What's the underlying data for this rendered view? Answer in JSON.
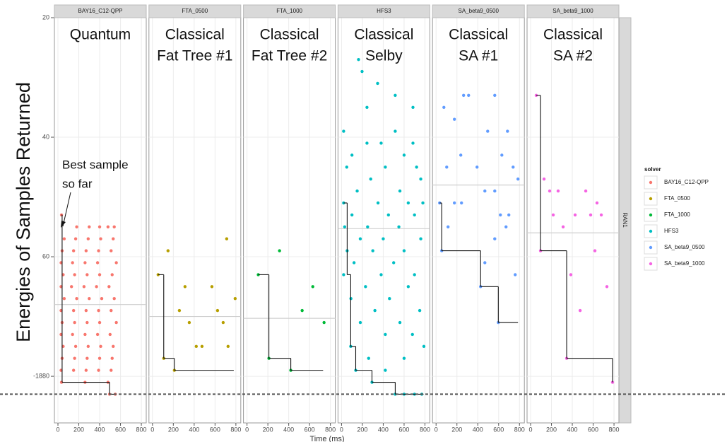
{
  "chart_data": {
    "type": "scatter",
    "y_label": "Energies of Samples Returned",
    "x_label": "Time (ms)",
    "legend_title": "solver",
    "facet_row_label": "RAN1",
    "annotation": [
      "Best sample",
      "so far"
    ],
    "reference_line": -1883,
    "xlim": [
      -34,
      847
    ],
    "xticks": [
      0,
      200,
      400,
      600,
      800
    ],
    "ylim": [
      -1887.8,
      -1820
    ],
    "yticks": [
      {
        "value": -1820,
        "label": "20"
      },
      {
        "value": -1840,
        "label": "40"
      },
      {
        "value": -1860,
        "label": "60"
      },
      -1880
    ],
    "grid": true,
    "series": [
      {
        "name": "BAY16_C12-QPP",
        "color": "#f8766d",
        "title": [
          "Quantum"
        ],
        "x": [
          34,
          180,
          300,
          400,
          480,
          540,
          60,
          170,
          290,
          410,
          530,
          40,
          150,
          270,
          390,
          510,
          30,
          140,
          260,
          380,
          560,
          50,
          160,
          280,
          400,
          520,
          30,
          130,
          250,
          370,
          490,
          60,
          180,
          300,
          420,
          540,
          30,
          150,
          270,
          390,
          510,
          40,
          160,
          280,
          400,
          560,
          30,
          140,
          260,
          380,
          500,
          50,
          170,
          290,
          410,
          530,
          40,
          160,
          280,
          400,
          520,
          30,
          150,
          270,
          390,
          510,
          34,
          260,
          480,
          495,
          550
        ],
        "values": [
          -1853,
          -1855,
          -1855,
          -1855,
          -1855,
          -1855,
          -1857,
          -1857,
          -1857,
          -1857,
          -1857,
          -1859,
          -1859,
          -1859,
          -1859,
          -1859,
          -1861,
          -1861,
          -1861,
          -1861,
          -1861,
          -1863,
          -1863,
          -1863,
          -1863,
          -1863,
          -1865,
          -1865,
          -1865,
          -1865,
          -1865,
          -1867,
          -1867,
          -1867,
          -1867,
          -1867,
          -1869,
          -1869,
          -1869,
          -1869,
          -1869,
          -1871,
          -1871,
          -1871,
          -1871,
          -1871,
          -1873,
          -1873,
          -1873,
          -1873,
          -1873,
          -1875,
          -1875,
          -1875,
          -1875,
          -1875,
          -1877,
          -1877,
          -1877,
          -1877,
          -1877,
          -1879,
          -1879,
          -1879,
          -1879,
          -1879,
          -1881,
          -1881,
          -1881,
          -1883,
          -1883
        ],
        "mean": -1868,
        "best_x": [
          34,
          40,
          495,
          560
        ],
        "best": [
          -1853,
          -1881,
          -1883,
          -1883
        ]
      },
      {
        "name": "FTA_0500",
        "color": "#b79f00",
        "title": [
          "Classical",
          "Fat Tree #1"
        ],
        "x": [
          54,
          149,
          712,
          312,
          570,
          258,
          624,
          353,
          678,
          420,
          475,
          725,
          793,
          108,
          210
        ],
        "values": [
          -1863,
          -1859,
          -1857,
          -1865,
          -1865,
          -1869,
          -1869,
          -1871,
          -1871,
          -1875,
          -1875,
          -1875,
          -1867,
          -1877,
          -1879
        ],
        "mean": -1870,
        "best_x": [
          54,
          108,
          210,
          780
        ],
        "best": [
          -1863,
          -1877,
          -1879,
          -1879
        ]
      },
      {
        "name": "FTA_1000",
        "color": "#00ba38",
        "title": [
          "Classical",
          "Fat Tree #2"
        ],
        "x": [
          108,
          312,
          529,
          631,
          739,
          210,
          420
        ],
        "values": [
          -1863,
          -1859,
          -1869,
          -1865,
          -1871,
          -1877,
          -1879
        ],
        "mean": -1870.3,
        "best_x": [
          108,
          210,
          420,
          730
        ],
        "best": [
          -1863,
          -1877,
          -1879,
          -1879
        ]
      },
      {
        "name": "HFS3",
        "color": "#00bfc4",
        "title": [
          "Classical",
          "Selby"
        ],
        "x": [
          163,
          197,
          346,
          515,
          244,
          685,
          20,
          515,
          244,
          685,
          380,
          100,
          600,
          720,
          420,
          50,
          280,
          760,
          560,
          150,
          20,
          350,
          640,
          780,
          100,
          450,
          700,
          250,
          550,
          30,
          400,
          760,
          180,
          54,
          600,
          300,
          500,
          120,
          700,
          20,
          380,
          640,
          230,
          460,
          90,
          750,
          320,
          560,
          180,
          420,
          680,
          88,
          790,
          260,
          600,
          136,
          420,
          292,
          515,
          600,
          700,
          770
        ],
        "values": [
          -1827,
          -1829,
          -1831,
          -1833,
          -1835,
          -1835,
          -1839,
          -1839,
          -1841,
          -1841,
          -1841,
          -1843,
          -1843,
          -1845,
          -1845,
          -1845,
          -1847,
          -1847,
          -1849,
          -1849,
          -1851,
          -1851,
          -1851,
          -1851,
          -1853,
          -1853,
          -1853,
          -1855,
          -1855,
          -1855,
          -1857,
          -1857,
          -1857,
          -1859,
          -1859,
          -1859,
          -1861,
          -1861,
          -1863,
          -1863,
          -1863,
          -1865,
          -1865,
          -1867,
          -1867,
          -1869,
          -1869,
          -1871,
          -1871,
          -1873,
          -1873,
          -1875,
          -1875,
          -1877,
          -1877,
          -1879,
          -1879,
          -1881,
          -1883,
          -1883,
          -1883,
          -1883
        ],
        "mean": -1855.3,
        "best_x": [
          20,
          54,
          88,
          136,
          292,
          515,
          786
        ],
        "best": [
          -1851,
          -1863,
          -1875,
          -1879,
          -1881,
          -1883,
          -1883
        ]
      },
      {
        "name": "SA_beta9_0500",
        "color": "#619cff",
        "title": [
          "Classical",
          "SA #1"
        ],
        "x": [
          75,
          264,
          312,
          563,
          176,
          495,
          685,
          237,
          631,
          393,
          102,
          739,
          786,
          563,
          468,
          34,
          176,
          244,
          115,
          617,
          698,
          563,
          671,
          54,
          468,
          759,
          427,
          597
        ],
        "values": [
          -1835,
          -1833,
          -1833,
          -1833,
          -1837,
          -1839,
          -1839,
          -1843,
          -1843,
          -1845,
          -1845,
          -1845,
          -1847,
          -1849,
          -1849,
          -1851,
          -1851,
          -1851,
          -1855,
          -1853,
          -1853,
          -1857,
          -1855,
          -1859,
          -1861,
          -1863,
          -1865,
          -1871
        ],
        "mean": -1848,
        "best_x": [
          34,
          54,
          427,
          597,
          786
        ],
        "best": [
          -1851,
          -1859,
          -1865,
          -1871,
          -1871
        ]
      },
      {
        "name": "SA_beta9_1000",
        "color": "#f564e3",
        "title": [
          "Classical",
          "SA #2"
        ],
        "x": [
          54,
          129,
          183,
          264,
          217,
          312,
          427,
          529,
          576,
          637,
          678,
          617,
          386,
          732,
          475,
          95,
          346,
          786
        ],
        "values": [
          -1833,
          -1847,
          -1849,
          -1849,
          -1853,
          -1855,
          -1853,
          -1849,
          -1853,
          -1851,
          -1853,
          -1859,
          -1863,
          -1865,
          -1869,
          -1859,
          -1877,
          -1881
        ],
        "mean": -1856,
        "best_x": [
          54,
          95,
          346,
          786
        ],
        "best": [
          -1833,
          -1859,
          -1877,
          -1881
        ]
      }
    ]
  }
}
